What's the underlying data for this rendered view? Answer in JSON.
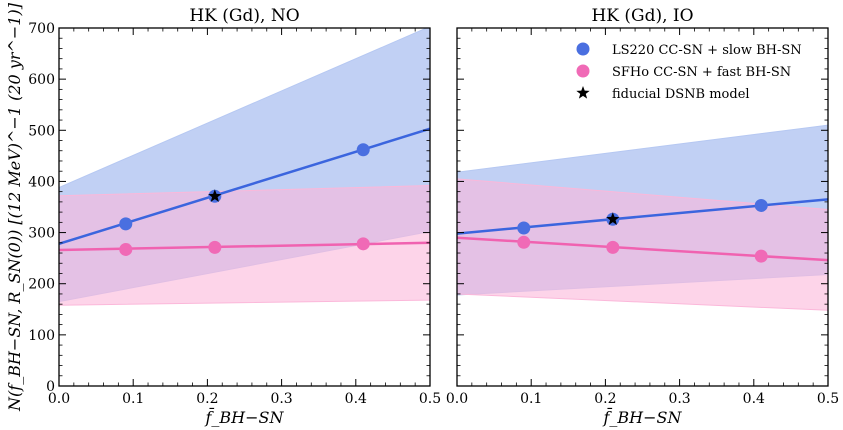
{
  "chart_data": {
    "type": "line",
    "ylabel_main": "N(f",
    "ylabel": "N(f_BH−SN, R_SN(0)) [(12 MeV)^−1 (20 yr^−1)]",
    "xlabel": "f̄_BH−SN",
    "xlim": [
      0.0,
      0.5
    ],
    "ylim": [
      0,
      700
    ],
    "xticks": [
      "0.0",
      "0.1",
      "0.2",
      "0.3",
      "0.4",
      "0.5"
    ],
    "yticks": [
      "0",
      "100",
      "200",
      "300",
      "400",
      "500",
      "600",
      "700"
    ],
    "colors": {
      "blue": "#3b65de",
      "blue_band": "#b6c8f2",
      "pink": "#f062b0",
      "pink_band": "#fbb8da"
    },
    "legend": [
      {
        "label": "LS220 CC-SN + slow BH-SN",
        "marker": "circle",
        "color": "#4a6fe0"
      },
      {
        "label": "SFHo CC-SN + fast BH-SN",
        "marker": "circle",
        "color": "#f06ab6"
      },
      {
        "label": "fiducial DSNB model",
        "marker": "star",
        "color": "#000000"
      }
    ],
    "panels": [
      {
        "title": "HK (Gd), NO",
        "series": [
          {
            "name": "LS220 CC-SN + slow BH-SN",
            "line": [
              [
                0.0,
                278
              ],
              [
                0.5,
                503
              ]
            ],
            "band_upper": [
              [
                0.0,
                388
              ],
              [
                0.5,
                703
              ]
            ],
            "band_lower": [
              [
                0.0,
                165
              ],
              [
                0.5,
                302
              ]
            ],
            "points": [
              [
                0.09,
                317
              ],
              [
                0.21,
                371
              ],
              [
                0.41,
                462
              ]
            ]
          },
          {
            "name": "SFHo CC-SN + fast BH-SN",
            "line": [
              [
                0.0,
                266
              ],
              [
                0.5,
                280
              ]
            ],
            "band_upper": [
              [
                0.0,
                372
              ],
              [
                0.5,
                392
              ]
            ],
            "band_lower": [
              [
                0.0,
                158
              ],
              [
                0.5,
                168
              ]
            ],
            "points": [
              [
                0.09,
                267
              ],
              [
                0.21,
                271
              ],
              [
                0.41,
                278
              ]
            ]
          }
        ],
        "fiducial": [
          0.21,
          371
        ]
      },
      {
        "title": "HK (Gd), IO",
        "series": [
          {
            "name": "LS220 CC-SN + slow BH-SN",
            "line": [
              [
                0.0,
                298
              ],
              [
                0.5,
                365
              ]
            ],
            "band_upper": [
              [
                0.0,
                418
              ],
              [
                0.5,
                510
              ]
            ],
            "band_lower": [
              [
                0.0,
                178
              ],
              [
                0.5,
                218
              ]
            ],
            "points": [
              [
                0.09,
                309
              ],
              [
                0.21,
                326
              ],
              [
                0.41,
                353
              ]
            ]
          },
          {
            "name": "SFHo CC-SN + fast BH-SN",
            "line": [
              [
                0.0,
                290
              ],
              [
                0.5,
                246
              ]
            ],
            "band_upper": [
              [
                0.0,
                405
              ],
              [
                0.5,
                345
              ]
            ],
            "band_lower": [
              [
                0.0,
                180
              ],
              [
                0.5,
                148
              ]
            ],
            "points": [
              [
                0.09,
                281
              ],
              [
                0.21,
                271
              ],
              [
                0.41,
                254
              ]
            ]
          }
        ],
        "fiducial": [
          0.21,
          326
        ]
      }
    ]
  }
}
